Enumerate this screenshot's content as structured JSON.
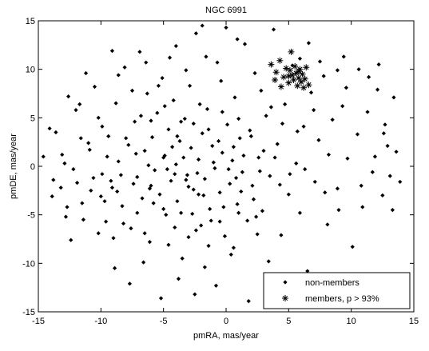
{
  "chart_data": {
    "type": "scatter",
    "title": "NGC 6991",
    "xlabel": "pmRA, mas/year",
    "ylabel": "pmDE, mas/year",
    "xlim": [
      -15,
      15
    ],
    "ylim": [
      -15,
      15
    ],
    "xticks": [
      -15,
      -10,
      -5,
      0,
      5,
      10,
      15
    ],
    "yticks": [
      -15,
      -10,
      -5,
      0,
      5,
      10,
      15
    ],
    "xtick_labels": [
      "-15",
      "-10",
      "-5",
      "0",
      "5",
      "10",
      "15"
    ],
    "ytick_labels": [
      "-15",
      "-10",
      "-5",
      "0",
      "5",
      "10",
      "15"
    ],
    "grid": false,
    "legend_position": "bottom-right",
    "series": [
      {
        "name": "non-members",
        "marker": "dot",
        "color": "#000000",
        "points": [
          [
            -14.6,
            1.0
          ],
          [
            -13.9,
            -3.1
          ],
          [
            -13.6,
            3.5
          ],
          [
            -13.1,
            1.2
          ],
          [
            -12.8,
            -5.2
          ],
          [
            -12.6,
            7.2
          ],
          [
            -12.4,
            -7.6
          ],
          [
            -12.0,
            5.8
          ],
          [
            -11.9,
            -1.7
          ],
          [
            -11.5,
            -3.8
          ],
          [
            -11.2,
            9.6
          ],
          [
            -11.0,
            2.4
          ],
          [
            -10.8,
            -2.5
          ],
          [
            -10.5,
            8.2
          ],
          [
            -10.2,
            5.0
          ],
          [
            -9.9,
            -0.8
          ],
          [
            -9.6,
            -5.7
          ],
          [
            -9.4,
            3.1
          ],
          [
            -9.1,
            -2.2
          ],
          [
            -8.8,
            6.5
          ],
          [
            -8.6,
            0.5
          ],
          [
            -8.3,
            -4.1
          ],
          [
            -8.1,
            10.2
          ],
          [
            -7.8,
            2.2
          ],
          [
            -7.6,
            -6.4
          ],
          [
            -7.3,
            4.6
          ],
          [
            -7.1,
            -1.1
          ],
          [
            -6.9,
            11.8
          ],
          [
            -6.7,
            -3.3
          ],
          [
            -6.5,
            1.6
          ],
          [
            -6.3,
            7.5
          ],
          [
            -6.1,
            -7.8
          ],
          [
            -5.9,
            3.0
          ],
          [
            -5.7,
            -0.4
          ],
          [
            -5.5,
            5.5
          ],
          [
            -5.3,
            -2.9
          ],
          [
            -5.1,
            9.1
          ],
          [
            -4.9,
            1.1
          ],
          [
            -4.8,
            -5.0
          ],
          [
            -4.6,
            3.8
          ],
          [
            -4.4,
            -1.5
          ],
          [
            -4.2,
            6.8
          ],
          [
            -4.0,
            0.2
          ],
          [
            -3.9,
            -3.6
          ],
          [
            -3.7,
            2.6
          ],
          [
            -3.5,
            -9.5
          ],
          [
            -3.3,
            4.9
          ],
          [
            -3.1,
            -0.9
          ],
          [
            -2.9,
            8.3
          ],
          [
            -2.8,
            1.9
          ],
          [
            -2.6,
            -2.4
          ],
          [
            -2.4,
            13.7
          ],
          [
            -2.2,
            0.7
          ],
          [
            -2.0,
            -6.1
          ],
          [
            -1.9,
            3.4
          ],
          [
            -1.7,
            -1.3
          ],
          [
            -1.5,
            5.9
          ],
          [
            -1.3,
            -4.4
          ],
          [
            -1.1,
            2.1
          ],
          [
            -0.9,
            -0.2
          ],
          [
            -0.7,
            10.7
          ],
          [
            -0.5,
            -2.7
          ],
          [
            -0.3,
            1.4
          ],
          [
            -0.1,
            -7.2
          ],
          [
            0.1,
            4.3
          ],
          [
            0.3,
            -1.8
          ],
          [
            0.5,
            0.6
          ],
          [
            0.7,
            7.1
          ],
          [
            0.9,
            -3.9
          ],
          [
            1.1,
            2.9
          ],
          [
            1.3,
            -0.6
          ],
          [
            1.5,
            12.6
          ],
          [
            1.7,
            -5.6
          ],
          [
            1.9,
            3.7
          ],
          [
            2.1,
            -2.0
          ],
          [
            2.3,
            9.6
          ],
          [
            2.6,
            0.9
          ],
          [
            2.9,
            -4.6
          ],
          [
            3.2,
            5.2
          ],
          [
            3.5,
            -1.0
          ],
          [
            3.8,
            14.1
          ],
          [
            4.1,
            2.3
          ],
          [
            4.4,
            -7.1
          ],
          [
            4.7,
            6.4
          ],
          [
            5.0,
            -2.9
          ],
          [
            5.3,
            10.4
          ],
          [
            5.6,
            0.3
          ],
          [
            5.9,
            -4.8
          ],
          [
            6.2,
            4.1
          ],
          [
            6.5,
            -10.8
          ],
          [
            6.8,
            7.6
          ],
          [
            7.1,
            -1.6
          ],
          [
            7.4,
            2.7
          ],
          [
            7.8,
            9.3
          ],
          [
            8.1,
            -6.0
          ],
          [
            8.5,
            4.8
          ],
          [
            8.9,
            -2.3
          ],
          [
            9.3,
            6.2
          ],
          [
            9.7,
            0.8
          ],
          [
            10.1,
            -8.3
          ],
          [
            10.5,
            3.3
          ],
          [
            10.9,
            -4.2
          ],
          [
            11.3,
            5.6
          ],
          [
            11.7,
            -0.6
          ],
          [
            12.1,
            7.9
          ],
          [
            12.5,
            -3.0
          ],
          [
            12.9,
            2.1
          ],
          [
            13.3,
            -4.5
          ],
          [
            13.6,
            1.5
          ],
          [
            13.9,
            -1.6
          ],
          [
            -12.2,
            -0.3
          ],
          [
            -10.9,
            1.7
          ],
          [
            -9.7,
            -3.6
          ],
          [
            -8.4,
            -0.9
          ],
          [
            -7.2,
            1.3
          ],
          [
            -6.0,
            -2.0
          ],
          [
            -4.7,
            -0.3
          ],
          [
            -3.4,
            0.9
          ],
          [
            -2.3,
            -0.7
          ],
          [
            -1.0,
            0.4
          ],
          [
            0.2,
            -0.3
          ],
          [
            1.4,
            1.1
          ],
          [
            2.7,
            -0.5
          ],
          [
            3.9,
            0.9
          ],
          [
            5.1,
            -0.8
          ],
          [
            -5.8,
            -3.8
          ],
          [
            -4.3,
            2.0
          ],
          [
            -3.0,
            -2.1
          ],
          [
            -1.8,
            -3.0
          ],
          [
            -0.6,
            2.6
          ],
          [
            0.8,
            -1.2
          ],
          [
            2.0,
            3.1
          ],
          [
            -2.7,
            -4.9
          ],
          [
            -4.1,
            -6.3
          ],
          [
            -1.4,
            -8.2
          ],
          [
            0.4,
            -9.1
          ],
          [
            -6.6,
            -9.9
          ],
          [
            -8.9,
            -10.5
          ],
          [
            -3.8,
            -11.6
          ],
          [
            -0.8,
            -12.3
          ],
          [
            1.8,
            -13.9
          ],
          [
            -2.5,
            -13.2
          ],
          [
            -5.2,
            -13.6
          ],
          [
            -7.7,
            -12.1
          ],
          [
            5.5,
            -12.6
          ],
          [
            6.1,
            -13.4
          ],
          [
            -3.6,
            4.6
          ],
          [
            -2.1,
            6.4
          ],
          [
            -5.4,
            8.3
          ],
          [
            -6.8,
            5.2
          ],
          [
            -8.0,
            2.9
          ],
          [
            -9.2,
            -1.5
          ],
          [
            -4.5,
            11.2
          ],
          [
            -1.6,
            11.3
          ],
          [
            0.9,
            13.1
          ],
          [
            2.8,
            7.8
          ],
          [
            3.6,
            6.1
          ],
          [
            1.0,
            4.9
          ],
          [
            -0.4,
            8.8
          ],
          [
            -3.2,
            9.9
          ],
          [
            -9.9,
            4.1
          ],
          [
            -11.7,
            6.4
          ],
          [
            -13.2,
            -2.2
          ],
          [
            -12.7,
            -4.2
          ],
          [
            -10.2,
            -6.9
          ],
          [
            -7.1,
            -4.8
          ],
          [
            4.3,
            -1.9
          ],
          [
            6.3,
            -0.3
          ],
          [
            7.9,
            -2.7
          ],
          [
            9.0,
            -4.5
          ],
          [
            10.8,
            -2.0
          ],
          [
            11.9,
            1.0
          ],
          [
            12.7,
            4.3
          ],
          [
            13.1,
            -1.0
          ],
          [
            11.4,
            9.2
          ],
          [
            9.6,
            8.1
          ],
          [
            8.2,
            1.2
          ],
          [
            7.0,
            5.8
          ],
          [
            5.7,
            3.6
          ],
          [
            4.5,
            4.4
          ],
          [
            3.0,
            1.6
          ],
          [
            2.2,
            -3.4
          ],
          [
            1.2,
            -2.6
          ],
          [
            -0.2,
            -4.2
          ],
          [
            -1.2,
            -5.6
          ],
          [
            -2.2,
            -2.9
          ],
          [
            -3.2,
            -1.4
          ],
          [
            -4.1,
            -0.8
          ],
          [
            -5.0,
            0.9
          ],
          [
            -6.2,
            0.1
          ],
          [
            -7.4,
            -1.8
          ],
          [
            -8.7,
            -2.6
          ],
          [
            -9.5,
            1.0
          ],
          [
            -10.6,
            -1.2
          ],
          [
            -11.6,
            2.9
          ],
          [
            -12.9,
            0.3
          ],
          [
            -14.1,
            3.9
          ],
          [
            -3.9,
            3.1
          ],
          [
            -2.6,
            4.4
          ],
          [
            -1.4,
            3.8
          ],
          [
            -0.3,
            5.6
          ],
          [
            0.6,
            2.0
          ],
          [
            -4.9,
            6.2
          ],
          [
            -6.0,
            4.7
          ],
          [
            -7.5,
            7.8
          ],
          [
            -8.6,
            9.4
          ],
          [
            -6.4,
            10.7
          ],
          [
            -9.1,
            11.9
          ],
          [
            -4.0,
            12.4
          ],
          [
            0.0,
            14.3
          ],
          [
            -1.9,
            14.5
          ],
          [
            7.5,
            10.8
          ],
          [
            8.9,
            9.9
          ],
          [
            9.4,
            11.3
          ],
          [
            10.6,
            10.0
          ],
          [
            12.2,
            10.5
          ],
          [
            6.6,
            12.7
          ],
          [
            5.9,
            11.1
          ],
          [
            13.4,
            7.1
          ],
          [
            12.6,
            3.4
          ],
          [
            -13.8,
            -1.4
          ],
          [
            -11.4,
            -5.5
          ],
          [
            -9.0,
            -7.4
          ],
          [
            -6.5,
            -6.9
          ],
          [
            -4.6,
            -8.1
          ],
          [
            -3.0,
            -7.3
          ],
          [
            -1.7,
            -10.4
          ],
          [
            0.6,
            -8.4
          ],
          [
            2.5,
            -7.0
          ],
          [
            3.4,
            -9.8
          ],
          [
            4.8,
            -11.2
          ],
          [
            -5.0,
            -4.4
          ],
          [
            -3.6,
            -4.8
          ],
          [
            -2.4,
            -6.6
          ],
          [
            -0.5,
            -5.7
          ],
          [
            1.0,
            -4.8
          ],
          [
            2.4,
            -5.2
          ],
          [
            -6.1,
            -2.3
          ],
          [
            -8.2,
            -5.9
          ],
          [
            -10.0,
            -3.1
          ]
        ]
      },
      {
        "name": "members, p > 93%",
        "marker": "asterisk",
        "color": "#000000",
        "points": [
          [
            3.6,
            10.5
          ],
          [
            4.0,
            9.7
          ],
          [
            4.3,
            10.9
          ],
          [
            4.6,
            9.2
          ],
          [
            4.8,
            10.1
          ],
          [
            5.0,
            8.6
          ],
          [
            5.1,
            9.9
          ],
          [
            5.2,
            11.8
          ],
          [
            5.3,
            9.4
          ],
          [
            5.4,
            8.9
          ],
          [
            5.5,
            10.3
          ],
          [
            5.6,
            9.6
          ],
          [
            5.7,
            8.3
          ],
          [
            5.8,
            9.1
          ],
          [
            5.9,
            10.0
          ],
          [
            6.0,
            8.7
          ],
          [
            6.1,
            9.5
          ],
          [
            6.2,
            8.1
          ],
          [
            6.3,
            9.0
          ],
          [
            6.4,
            10.2
          ],
          [
            6.6,
            8.4
          ],
          [
            4.4,
            8.2
          ],
          [
            3.9,
            8.9
          ],
          [
            5.0,
            9.3
          ],
          [
            5.8,
            9.8
          ]
        ]
      }
    ]
  }
}
